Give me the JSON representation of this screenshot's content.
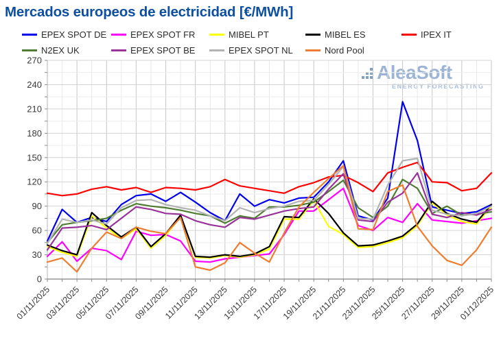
{
  "title": "Mercados europeos de electricidad [€/MWh]",
  "watermark": {
    "brand": "AleaSoft",
    "tagline": "ENERGY FORECASTING"
  },
  "chart_data": {
    "type": "line",
    "title": "Mercados europeos de electricidad [€/MWh]",
    "xlabel": "",
    "ylabel": "€/MWh",
    "ylim": [
      0,
      270
    ],
    "y_ticks": [
      0,
      30,
      60,
      90,
      120,
      150,
      180,
      210,
      240,
      270
    ],
    "y_minor_step": 15,
    "grid": true,
    "legend_position": "top",
    "dates": [
      "01/11/2025",
      "02/11/2025",
      "03/11/2025",
      "04/11/2025",
      "05/11/2025",
      "06/11/2025",
      "07/11/2025",
      "08/11/2025",
      "09/11/2025",
      "10/11/2025",
      "11/11/2025",
      "12/11/2025",
      "13/11/2025",
      "14/11/2025",
      "15/11/2025",
      "16/11/2025",
      "17/11/2025",
      "18/11/2025",
      "19/11/2025",
      "20/11/2025",
      "21/11/2025",
      "22/11/2025",
      "23/11/2025",
      "24/11/2025",
      "25/11/2025",
      "26/11/2025",
      "27/11/2025",
      "28/11/2025",
      "29/11/2025",
      "30/11/2025",
      "01/12/2025"
    ],
    "x_tick_every": 2,
    "series": [
      {
        "name": "EPEX SPOT DE",
        "color": "#0000ee",
        "values": [
          47,
          86,
          70,
          76,
          71,
          92,
          103,
          105,
          96,
          107,
          95,
          82,
          72,
          105,
          90,
          98,
          94,
          100,
          101,
          120,
          146,
          78,
          73,
          100,
          219,
          171,
          89,
          85,
          81,
          83,
          92
        ]
      },
      {
        "name": "EPEX SPOT FR",
        "color": "#ff00ff",
        "values": [
          28,
          46,
          22,
          38,
          35,
          24,
          59,
          54,
          55,
          47,
          22,
          21,
          25,
          27,
          29,
          31,
          55,
          84,
          84,
          98,
          112,
          66,
          60,
          76,
          70,
          93,
          73,
          71,
          69,
          72,
          75
        ]
      },
      {
        "name": "MIBEL PT",
        "color": "#ffff00",
        "values": [
          40,
          33,
          28,
          78,
          63,
          50,
          62,
          38,
          54,
          77,
          27,
          26,
          29,
          27,
          30,
          37,
          74,
          74,
          97,
          65,
          55,
          39,
          40,
          45,
          51,
          66,
          94,
          79,
          71,
          68,
          90
        ]
      },
      {
        "name": "MIBEL ES",
        "color": "#000000",
        "values": [
          42,
          35,
          30,
          82,
          66,
          52,
          64,
          40,
          56,
          79,
          28,
          27,
          30,
          28,
          31,
          40,
          77,
          76,
          99,
          81,
          57,
          41,
          42,
          47,
          53,
          68,
          96,
          81,
          74,
          70,
          92
        ]
      },
      {
        "name": "IPEX IT",
        "color": "#ff0000",
        "values": [
          106,
          103,
          105,
          111,
          114,
          110,
          113,
          107,
          113,
          112,
          110,
          114,
          123,
          115,
          112,
          109,
          106,
          114,
          119,
          126,
          128,
          119,
          108,
          131,
          138,
          144,
          120,
          119,
          109,
          112,
          131
        ]
      },
      {
        "name": "N2EX UK",
        "color": "#4e7d32",
        "values": [
          45,
          67,
          70,
          72,
          75,
          85,
          93,
          90,
          88,
          85,
          81,
          78,
          69,
          78,
          75,
          89,
          89,
          91,
          95,
          108,
          122,
          88,
          76,
          90,
          123,
          112,
          81,
          90,
          79,
          80,
          83
        ]
      },
      {
        "name": "EPEX SPOT BE",
        "color": "#993399",
        "values": [
          36,
          63,
          64,
          66,
          61,
          75,
          89,
          86,
          81,
          80,
          72,
          67,
          64,
          76,
          74,
          79,
          84,
          87,
          89,
          111,
          130,
          73,
          71,
          95,
          106,
          131,
          80,
          76,
          82,
          79,
          86
        ]
      },
      {
        "name": "EPEX SPOT NL",
        "color": "#b3b3b3",
        "values": [
          44,
          74,
          70,
          73,
          68,
          88,
          97,
          98,
          92,
          88,
          85,
          78,
          72,
          88,
          82,
          87,
          90,
          96,
          97,
          117,
          139,
          75,
          74,
          116,
          146,
          149,
          85,
          80,
          78,
          81,
          90
        ]
      },
      {
        "name": "Nord Pool",
        "color": "#ed7d31",
        "values": [
          21,
          26,
          9,
          38,
          58,
          50,
          64,
          59,
          56,
          76,
          15,
          11,
          20,
          45,
          32,
          21,
          57,
          89,
          107,
          124,
          140,
          62,
          61,
          108,
          116,
          65,
          41,
          23,
          17,
          36,
          64
        ]
      }
    ]
  }
}
